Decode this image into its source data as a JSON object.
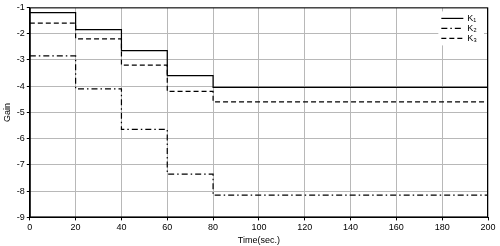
{
  "chart_data": {
    "type": "step",
    "x_label": "Time(sec.)",
    "y_label": "Gain",
    "x": [
      0,
      20,
      40,
      60,
      80,
      200
    ],
    "series": [
      {
        "name": "K₁",
        "color": "#000000",
        "line_style": "solid",
        "values": [
          -1.2,
          -1.85,
          -2.65,
          -3.6,
          -4.05,
          -4.05
        ]
      },
      {
        "name": "K₂",
        "color": "#000000",
        "line_style": "dashdot",
        "values": [
          -2.85,
          -4.1,
          -5.65,
          -7.35,
          -8.15,
          -8.15
        ]
      },
      {
        "name": "K₃",
        "color": "#000000",
        "line_style": "dashed",
        "values": [
          -1.6,
          -2.2,
          -3.2,
          -4.2,
          -4.6,
          -4.6
        ]
      }
    ],
    "xlim": [
      0,
      200
    ],
    "xticks": [
      0,
      20,
      40,
      60,
      80,
      100,
      120,
      140,
      160,
      180,
      200
    ],
    "ylim": [
      -9,
      -1
    ],
    "yticks": [
      -9,
      -8,
      -7,
      -6,
      -5,
      -4,
      -3,
      -2,
      -1
    ],
    "grid": true,
    "legend": "upper right"
  }
}
